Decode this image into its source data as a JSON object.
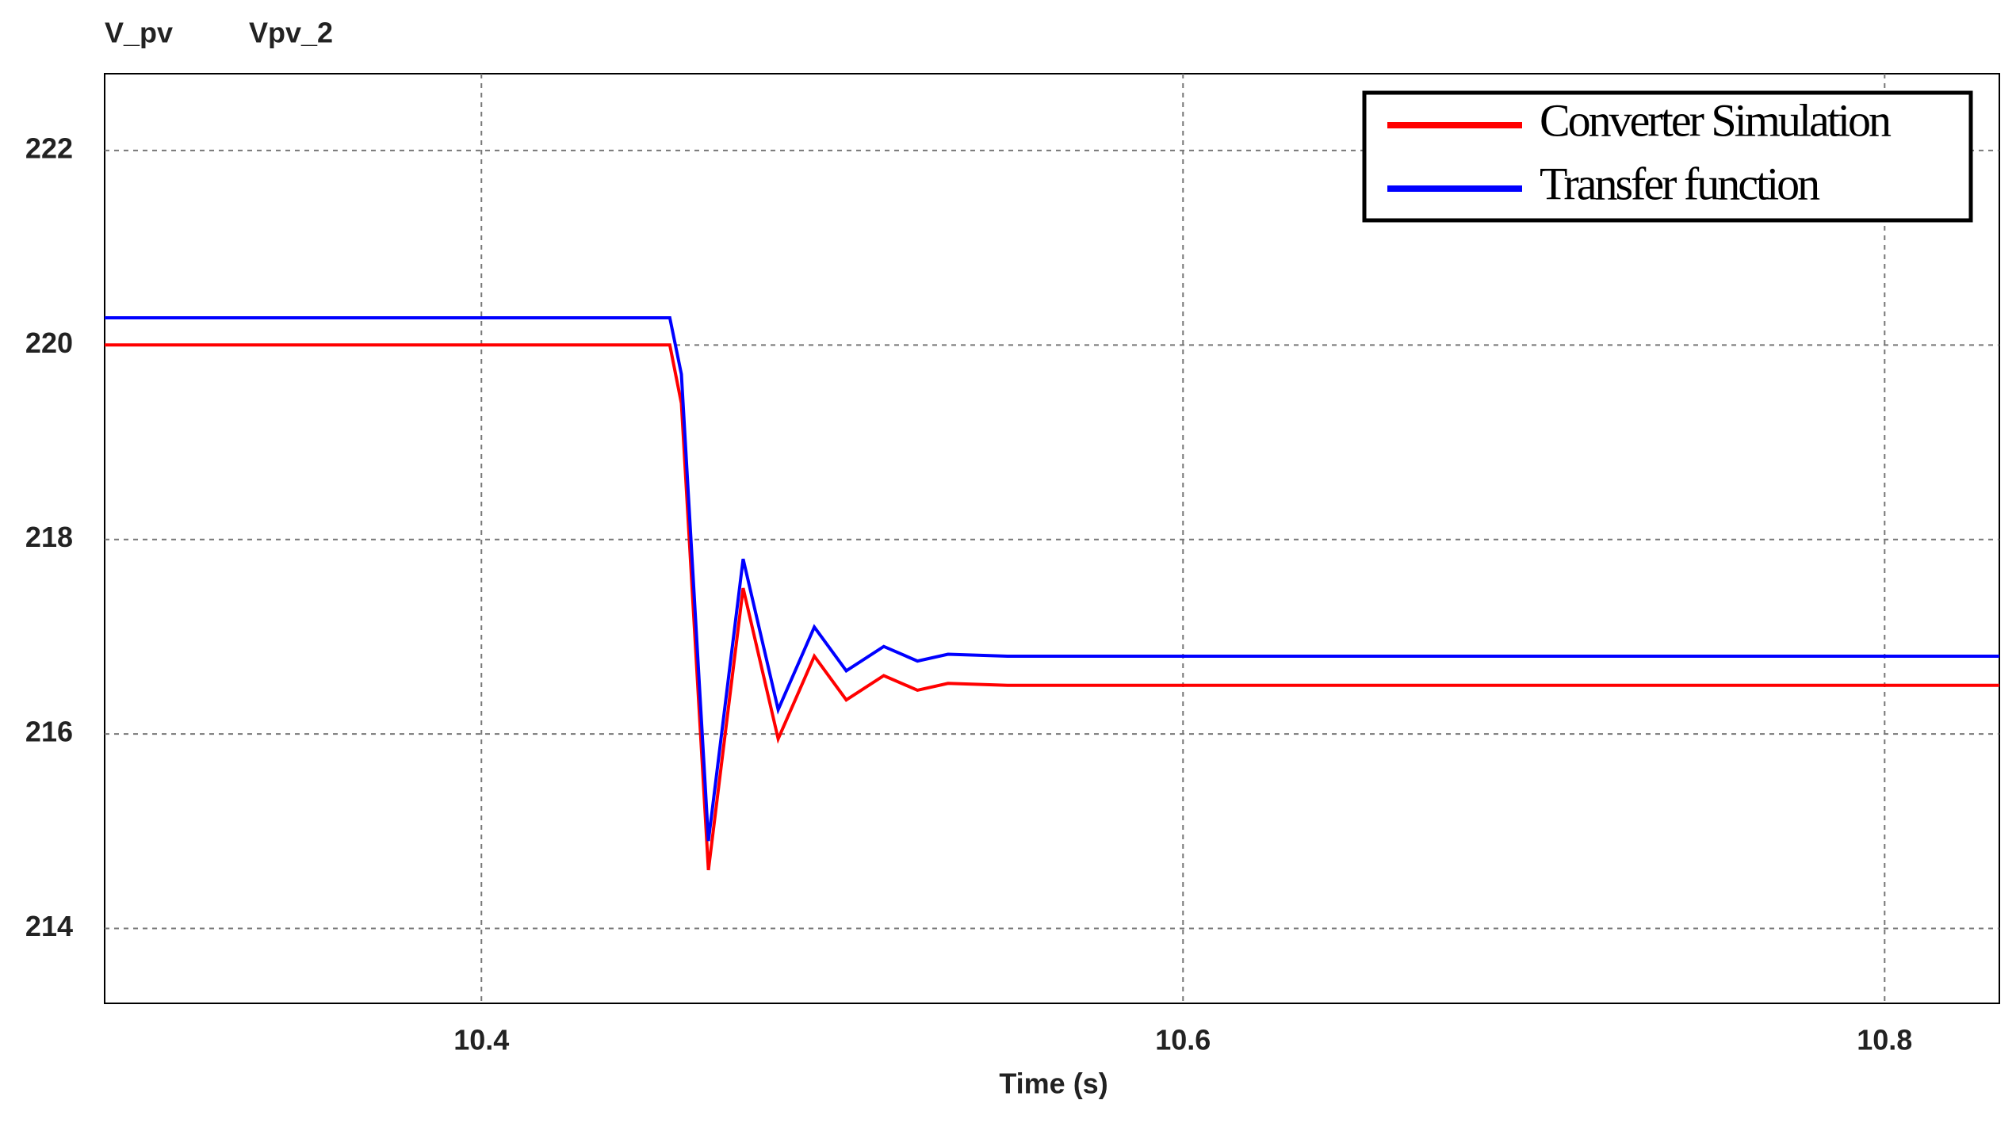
{
  "chart_data": {
    "type": "line",
    "probe_labels": [
      "V_pv",
      "Vpv_2"
    ],
    "xlabel": "Time (s)",
    "x": [
      10.2926,
      10.4537,
      10.457,
      10.4647,
      10.4746,
      10.4846,
      10.4949,
      10.504,
      10.5147,
      10.5243,
      10.533,
      10.55,
      10.8327
    ],
    "series": [
      {
        "name": "Converter Simulation",
        "color": "#ff0000",
        "values": [
          220,
          220,
          219.4,
          214.6,
          217.5,
          215.95,
          216.8,
          216.35,
          216.6,
          216.45,
          216.52,
          216.5,
          216.5
        ]
      },
      {
        "name": "Transfer function",
        "color": "#0000ff",
        "values": [
          220.28,
          220.28,
          219.7,
          214.9,
          217.8,
          216.25,
          217.1,
          216.65,
          216.9,
          216.75,
          216.82,
          216.8,
          216.8
        ]
      }
    ],
    "xlim": [
      10.2926,
      10.8327
    ],
    "xticks": [
      10.4,
      10.6,
      10.8
    ],
    "ylim": [
      213.23,
      222.79
    ],
    "yticks": [
      214,
      216,
      218,
      220,
      222
    ],
    "grid": true,
    "legend": "upper right"
  }
}
